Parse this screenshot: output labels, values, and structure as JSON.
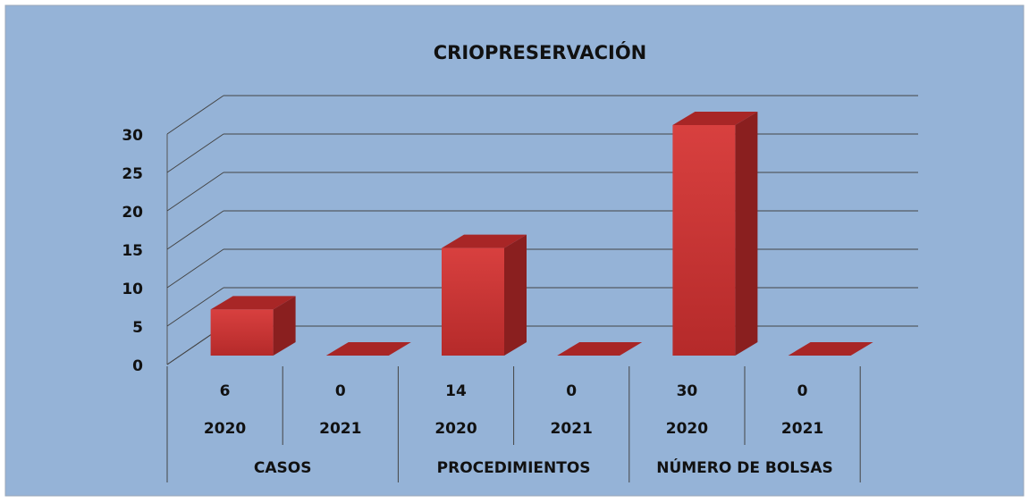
{
  "chart_data": {
    "type": "bar3d",
    "title": "CRIOPRESERVACIÓN",
    "groups": [
      "CASOS",
      "PROCEDIMIENTOS",
      "NÚMERO DE BOLSAS"
    ],
    "categories": [
      "2020",
      "2021",
      "2020",
      "2021",
      "2020",
      "2021"
    ],
    "values": [
      6,
      0,
      14,
      0,
      30,
      0
    ],
    "color": "#d0393a",
    "ylim": [
      0,
      30
    ],
    "yticks": [
      0,
      5,
      10,
      15,
      20,
      25,
      30
    ],
    "grid": true
  }
}
